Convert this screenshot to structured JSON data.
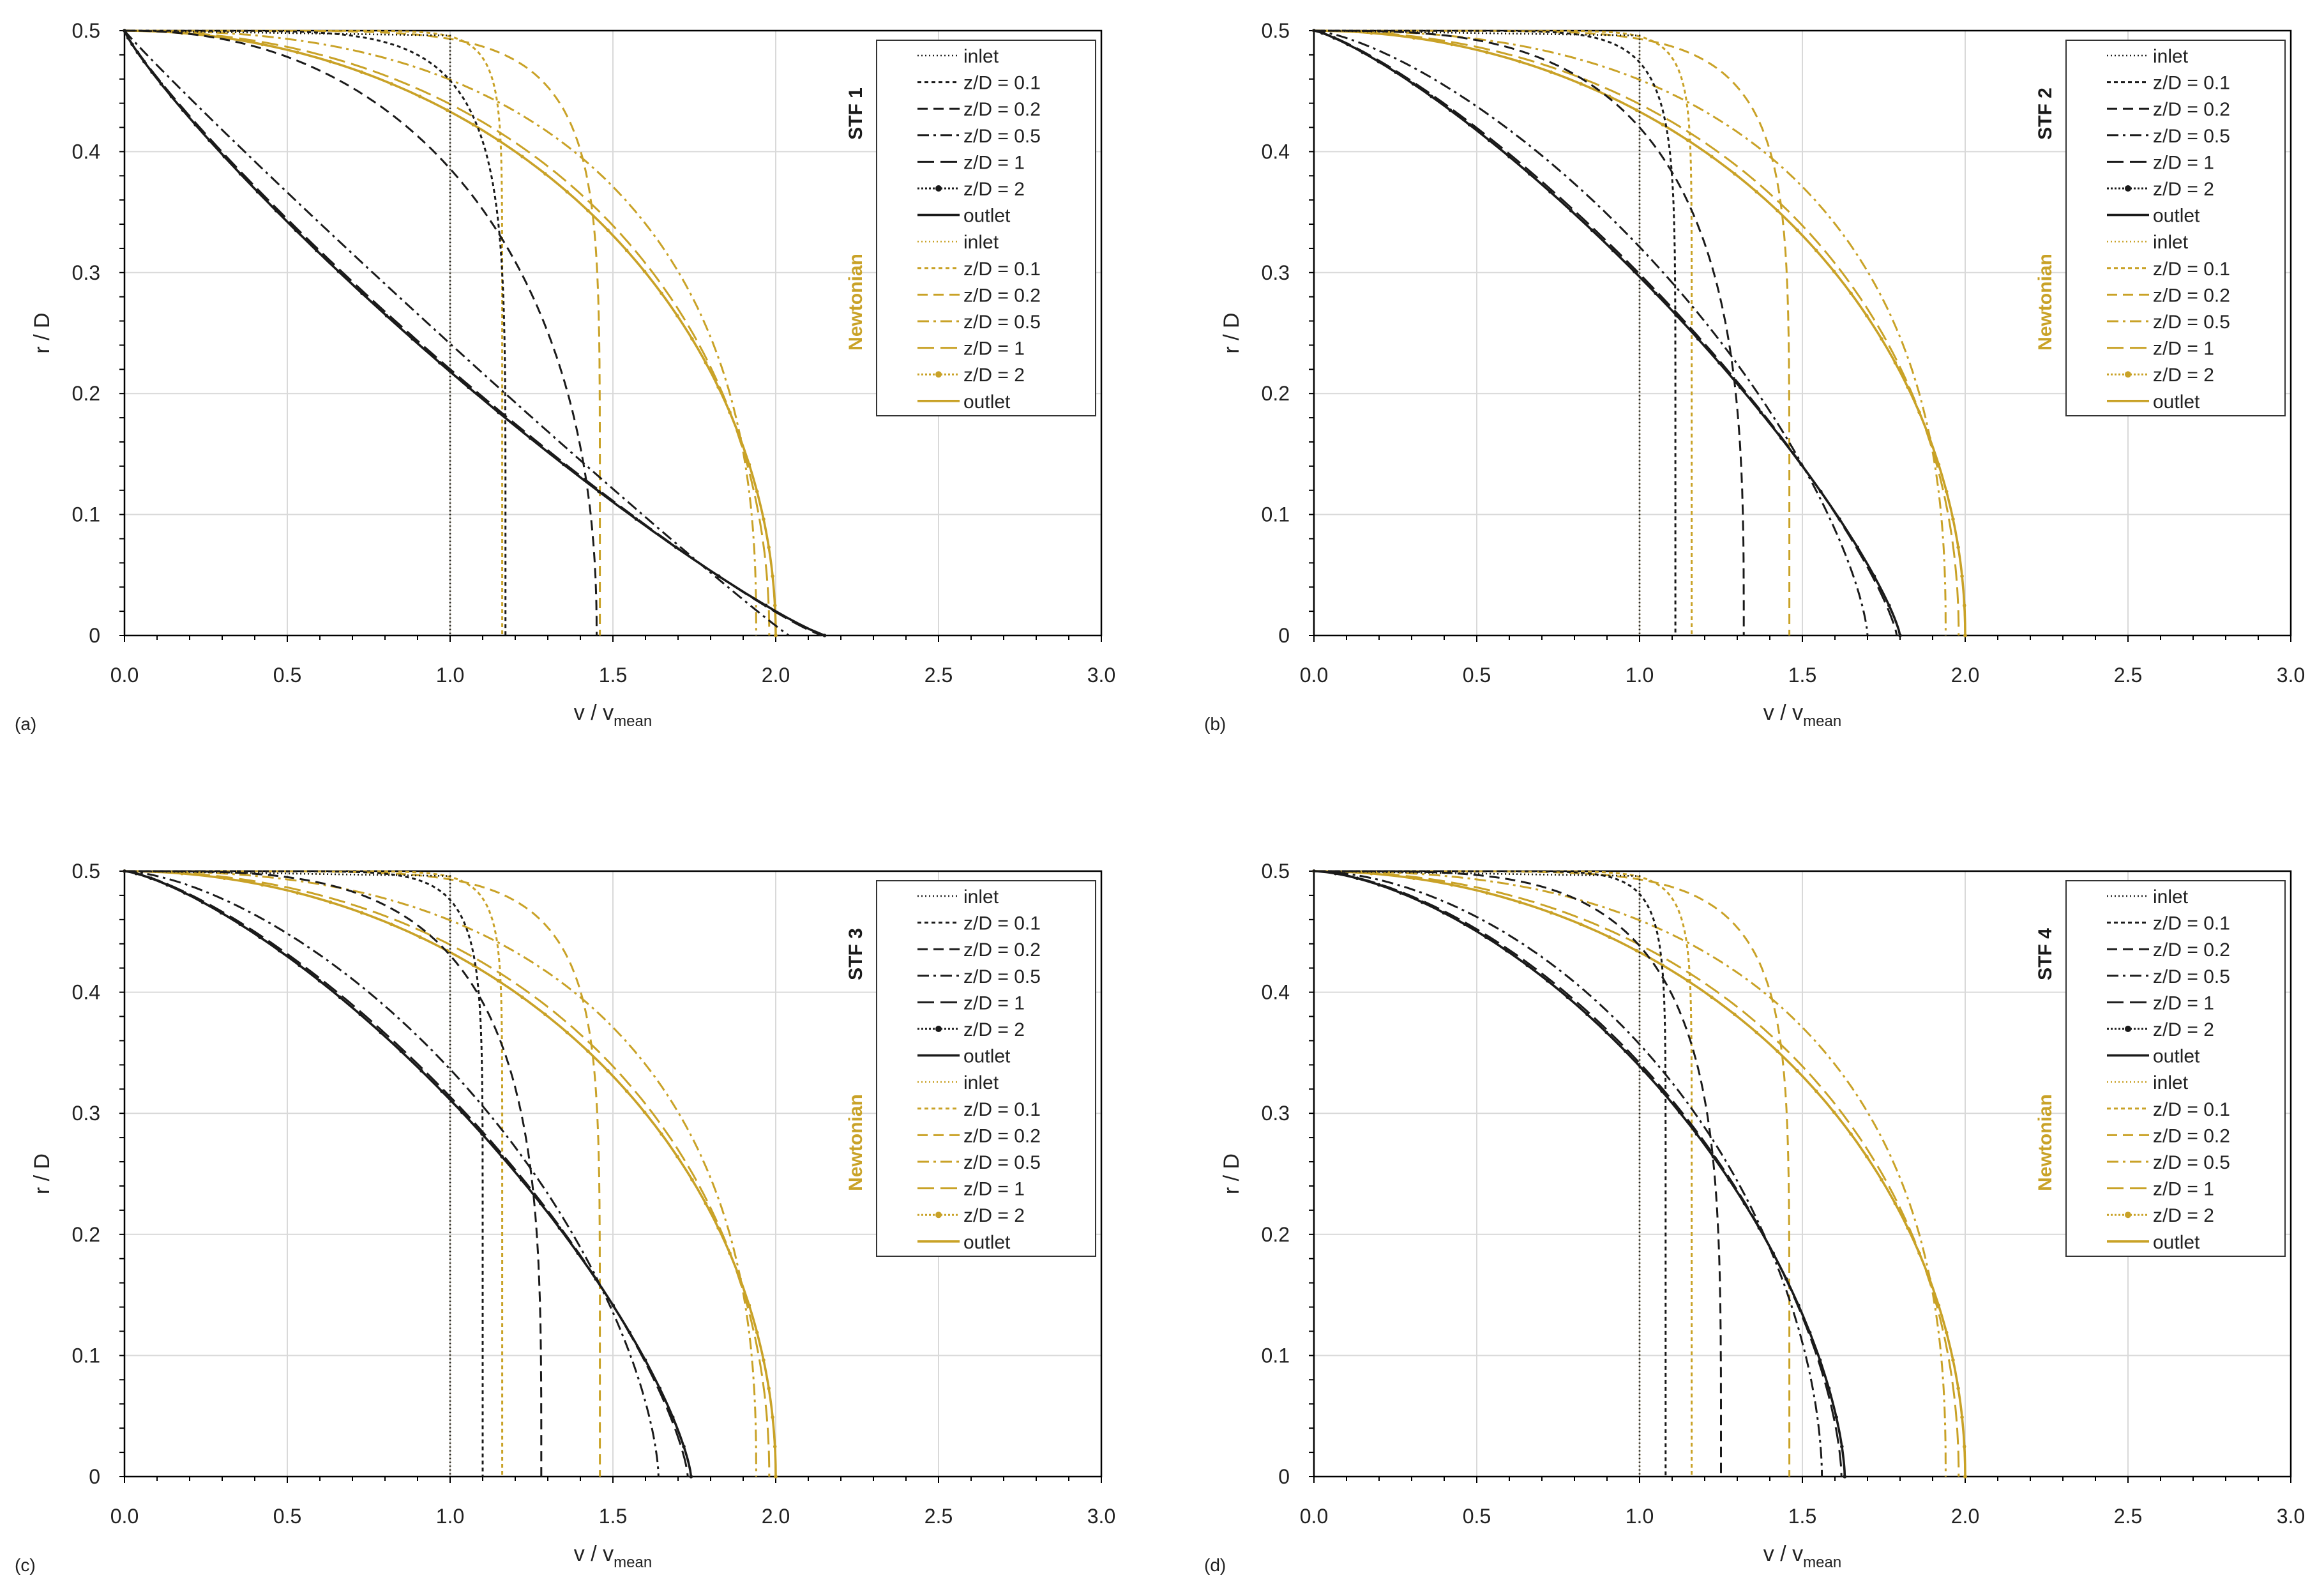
{
  "figure": {
    "colors": {
      "stf": "#1a1a1a",
      "newtonian": "#c9a227",
      "grid": "#d9d9d9",
      "axis": "#000000"
    }
  },
  "chart_data": [
    {
      "type": "line",
      "panel_label": "(a)",
      "xlabel": "v / v",
      "xlabel_sub": "mean",
      "ylabel": "r / D",
      "xlim": [
        0,
        3.0
      ],
      "ylim": [
        0,
        0.5
      ],
      "xticks": [
        "0.0",
        "0.5",
        "1.0",
        "1.5",
        "2.0",
        "2.5",
        "3.0"
      ],
      "yticks": [
        "0",
        "0.1",
        "0.2",
        "0.3",
        "0.4",
        "0.5"
      ],
      "stf_label": "STF 1",
      "newtonian_label": "Newtonian",
      "legend": [
        "inlet",
        "z/D = 0.1",
        "z/D = 0.2",
        "z/D = 0.5",
        "z/D = 1",
        "z/D = 2",
        "outlet",
        "inlet",
        "z/D = 0.1",
        "z/D = 0.2",
        "z/D = 0.5",
        "z/D = 1",
        "z/D = 2",
        "outlet"
      ],
      "stf_centerline": {
        "z0.1": 1.17,
        "z0.2": 1.45,
        "z0.5": 2.04,
        "z1": 2.14,
        "z2": 2.15,
        "outlet": 2.15
      },
      "newtonian_centerline": {
        "z0.1": 1.16,
        "z0.2": 1.46,
        "z0.5": 1.94,
        "z1": 1.98,
        "z2": 2.0,
        "outlet": 2.0
      }
    },
    {
      "type": "line",
      "panel_label": "(b)",
      "xlabel": "v / v",
      "xlabel_sub": "mean",
      "ylabel": "r / D",
      "xlim": [
        0,
        3.0
      ],
      "ylim": [
        0,
        0.5
      ],
      "xticks": [
        "0.0",
        "0.5",
        "1.0",
        "1.5",
        "2.0",
        "2.5",
        "3.0"
      ],
      "yticks": [
        "0",
        "0.1",
        "0.2",
        "0.3",
        "0.4",
        "0.5"
      ],
      "stf_label": "STF 2",
      "newtonian_label": "Newtonian",
      "legend": [
        "inlet",
        "z/D = 0.1",
        "z/D = 0.2",
        "z/D = 0.5",
        "z/D = 1",
        "z/D = 2",
        "outlet",
        "inlet",
        "z/D = 0.1",
        "z/D = 0.2",
        "z/D = 0.5",
        "z/D = 1",
        "z/D = 2",
        "outlet"
      ],
      "stf_centerline": {
        "z0.1": 1.11,
        "z0.2": 1.32,
        "z0.5": 1.7,
        "z1": 1.79,
        "z2": 1.8,
        "outlet": 1.8
      },
      "newtonian_centerline": {
        "z0.1": 1.16,
        "z0.2": 1.46,
        "z0.5": 1.94,
        "z1": 1.98,
        "z2": 2.0,
        "outlet": 2.0
      }
    },
    {
      "type": "line",
      "panel_label": "(c)",
      "xlabel": "v / v",
      "xlabel_sub": "mean",
      "ylabel": "r / D",
      "xlim": [
        0,
        3.0
      ],
      "ylim": [
        0,
        0.5
      ],
      "xticks": [
        "0.0",
        "0.5",
        "1.0",
        "1.5",
        "2.0",
        "2.5",
        "3.0"
      ],
      "yticks": [
        "0",
        "0.1",
        "0.2",
        "0.3",
        "0.4",
        "0.5"
      ],
      "stf_label": "STF 3",
      "newtonian_label": "Newtonian",
      "legend": [
        "inlet",
        "z/D = 0.1",
        "z/D = 0.2",
        "z/D = 0.5",
        "z/D = 1",
        "z/D = 2",
        "outlet",
        "inlet",
        "z/D = 0.1",
        "z/D = 0.2",
        "z/D = 0.5",
        "z/D = 1",
        "z/D = 2",
        "outlet"
      ],
      "stf_centerline": {
        "z0.1": 1.1,
        "z0.2": 1.28,
        "z0.5": 1.64,
        "z1": 1.73,
        "z2": 1.74,
        "outlet": 1.74
      },
      "newtonian_centerline": {
        "z0.1": 1.16,
        "z0.2": 1.46,
        "z0.5": 1.94,
        "z1": 1.98,
        "z2": 2.0,
        "outlet": 2.0
      }
    },
    {
      "type": "line",
      "panel_label": "(d)",
      "xlabel": "v / v",
      "xlabel_sub": "mean",
      "ylabel": "r / D",
      "xlim": [
        0,
        3.0
      ],
      "ylim": [
        0,
        0.5
      ],
      "xticks": [
        "0.0",
        "0.5",
        "1.0",
        "1.5",
        "2.0",
        "2.5",
        "3.0"
      ],
      "yticks": [
        "0",
        "0.1",
        "0.2",
        "0.3",
        "0.4",
        "0.5"
      ],
      "stf_label": "STF 4",
      "newtonian_label": "Newtonian",
      "legend": [
        "inlet",
        "z/D = 0.1",
        "z/D = 0.2",
        "z/D = 0.5",
        "z/D = 1",
        "z/D = 2",
        "outlet",
        "inlet",
        "z/D = 0.1",
        "z/D = 0.2",
        "z/D = 0.5",
        "z/D = 1",
        "z/D = 2",
        "outlet"
      ],
      "stf_centerline": {
        "z0.1": 1.08,
        "z0.2": 1.25,
        "z0.5": 1.56,
        "z1": 1.62,
        "z2": 1.63,
        "outlet": 1.63
      },
      "newtonian_centerline": {
        "z0.1": 1.16,
        "z0.2": 1.46,
        "z0.5": 1.94,
        "z1": 1.98,
        "z2": 2.0,
        "outlet": 2.0
      }
    }
  ]
}
